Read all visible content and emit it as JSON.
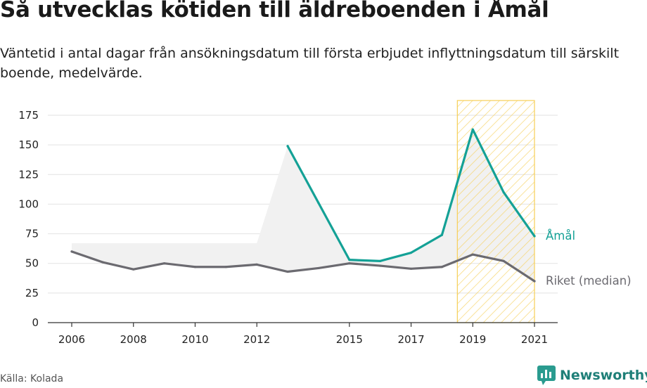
{
  "title": "Så utvecklas kötiden till äldreboenden i Åmål",
  "subtitle": "Väntetid i antal dagar från ansökningsdatum till första erbjudet inflyttningsdatum till särskilt boende, medelvärde.",
  "source": "Källa: Kolada",
  "brand": {
    "name": "Newsworthy",
    "icon": "newsworthy-logo-icon"
  },
  "colors": {
    "amal": "#14a196",
    "riket": "#6b6a70",
    "gap_fill": "#f1f1f1",
    "highlight": "#f6cf57",
    "grid": "#e2e2e2",
    "axis": "#333333"
  },
  "chart_data": {
    "type": "line",
    "ylim": [
      0,
      175
    ],
    "yticks": [
      0,
      25,
      50,
      75,
      100,
      125,
      150,
      175
    ],
    "xlim": [
      2006,
      2021
    ],
    "xticks": [
      2006,
      2008,
      2010,
      2012,
      2015,
      2017,
      2019,
      2021
    ],
    "grid": true,
    "highlight_range": [
      2018.5,
      2021
    ],
    "series": [
      {
        "name": "Åmål",
        "color": "#14a196",
        "x": [
          2013,
          2014,
          2015,
          2016,
          2017,
          2018,
          2019,
          2020,
          2021
        ],
        "values": [
          149,
          101,
          53,
          52,
          59,
          74,
          163,
          110,
          73
        ]
      },
      {
        "name": "Riket (median)",
        "color": "#6b6a70",
        "x": [
          2006,
          2007,
          2008,
          2009,
          2010,
          2011,
          2012,
          2013,
          2014,
          2015,
          2016,
          2017,
          2018,
          2019,
          2020,
          2021
        ],
        "values": [
          60,
          51,
          45,
          50,
          47,
          47,
          49,
          43,
          46,
          50,
          48,
          45.5,
          47,
          57.5,
          52,
          35
        ]
      }
    ]
  }
}
